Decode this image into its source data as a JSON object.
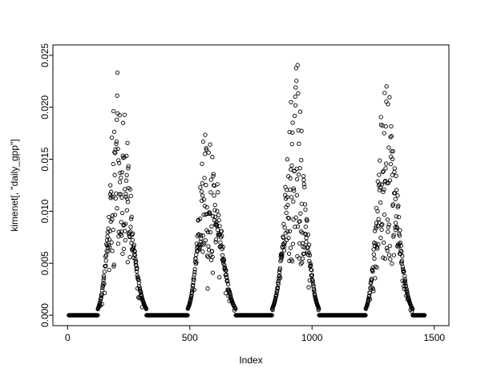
{
  "figure": {
    "background_color": "#ffffff",
    "foreground_color": "#000000",
    "style": "R-base-graphics"
  },
  "chart_data": {
    "type": "scatter",
    "title": "",
    "xlabel": "Index",
    "ylabel": "kimenet[, \"daily_gpp\"]",
    "marker": "open-circle",
    "marker_color": "#000000",
    "grid": false,
    "legend": null,
    "xlim": [
      0,
      1500
    ],
    "ylim": [
      0.0,
      0.025
    ],
    "x_ticks": [
      0,
      500,
      1000,
      1500
    ],
    "y_ticks": [
      0.0,
      0.005,
      0.01,
      0.015,
      0.02,
      0.025
    ],
    "n_points": 1460,
    "baseline_value": 0.0,
    "baseline_segments": [
      [
        5,
        140
      ],
      [
        300,
        505
      ],
      [
        665,
        855
      ],
      [
        1010,
        1235
      ],
      [
        1390,
        1460
      ]
    ],
    "seasonal_peaks": [
      {
        "center": 207,
        "peak_value": 0.025,
        "rise_start": 140,
        "fall_end": 300
      },
      {
        "center": 572,
        "peak_value": 0.02,
        "rise_start": 505,
        "fall_end": 668
      },
      {
        "center": 932,
        "peak_value": 0.025,
        "rise_start": 855,
        "fall_end": 1010
      },
      {
        "center": 1300,
        "peak_value": 0.0245,
        "rise_start": 1235,
        "fall_end": 1390
      }
    ],
    "description": "Daily GPP time series: four annual growing-season peaks (max ~0.020-0.025) separated by dormant periods where values sit exactly at 0, plotted as open circles against index 0-1460."
  }
}
